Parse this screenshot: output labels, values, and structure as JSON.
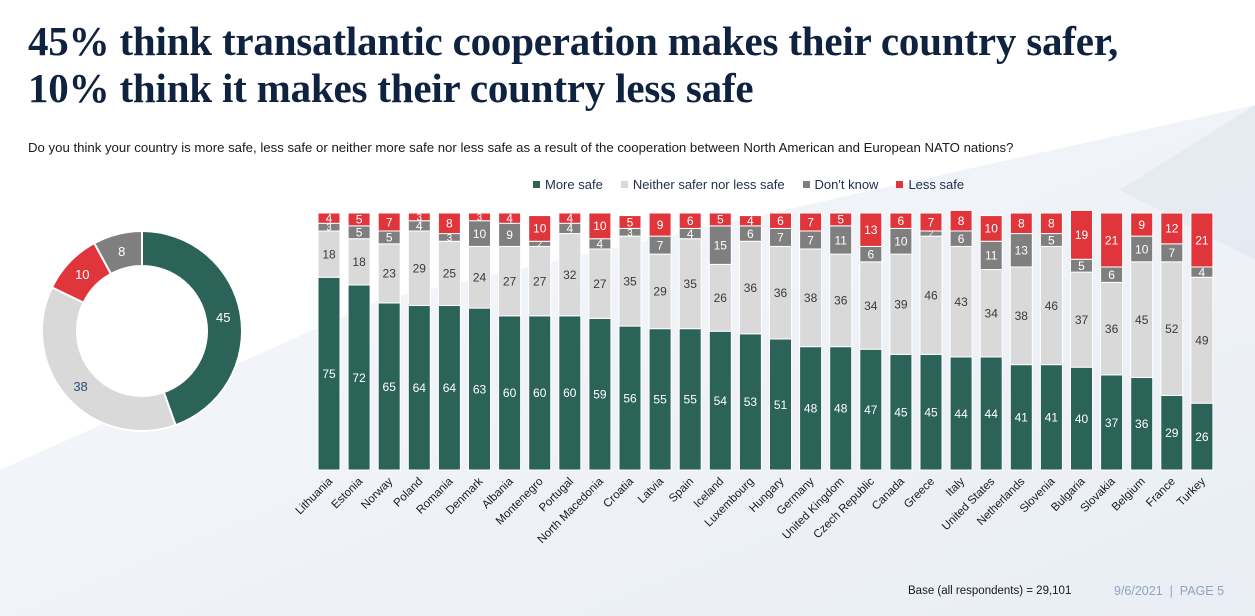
{
  "title_lines": [
    "45% think transatlantic cooperation makes their country safer,",
    "10% think it makes their country less safe"
  ],
  "subtitle": "Do you think your country is more safe, less safe or neither more safe nor less safe as a result of the cooperation between North American and European NATO nations?",
  "footer": {
    "base": "Base (all respondents) = 29,101",
    "date_page": "9/6/2021  |  PAGE 5"
  },
  "colors": {
    "more_safe": "#2b6358",
    "neither": "#d9d9d9",
    "dont_know": "#7f7f7f",
    "less_safe": "#e0353a"
  },
  "chart_data": [
    {
      "type": "pie",
      "variant": "donut",
      "title": "",
      "categories": [
        "More safe",
        "Neither safer nor less safe",
        "Less safe",
        "Don't know"
      ],
      "values": [
        45,
        38,
        10,
        8
      ]
    },
    {
      "type": "bar",
      "stacked": true,
      "orientation": "vertical",
      "title": "",
      "xlabel": "",
      "ylabel": "",
      "ylim": [
        0,
        100
      ],
      "grid": false,
      "legend_position": "top",
      "categories": [
        "Lithuania",
        "Estonia",
        "Norway",
        "Poland",
        "Romania",
        "Denmark",
        "Albania",
        "Montenegro",
        "Portugal",
        "North Macedonia",
        "Croatia",
        "Latvia",
        "Spain",
        "Iceland",
        "Luxembourg",
        "Hungary",
        "Germany",
        "United Kingdom",
        "Czech Republic",
        "Canada",
        "Greece",
        "Italy",
        "United States",
        "Netherlands",
        "Slovenia",
        "Bulgaria",
        "Slovakia",
        "Belgium",
        "France",
        "Turkey"
      ],
      "series": [
        {
          "name": "More safe",
          "key": "more_safe",
          "values": [
            75,
            72,
            65,
            64,
            64,
            63,
            60,
            60,
            60,
            59,
            56,
            55,
            55,
            54,
            53,
            51,
            48,
            48,
            47,
            45,
            45,
            44,
            44,
            41,
            41,
            40,
            37,
            36,
            29,
            26
          ]
        },
        {
          "name": "Neither safer nor less safe",
          "key": "neither",
          "values": [
            18,
            18,
            23,
            29,
            25,
            24,
            27,
            27,
            32,
            27,
            35,
            29,
            35,
            26,
            36,
            36,
            38,
            36,
            34,
            39,
            46,
            43,
            34,
            38,
            46,
            37,
            36,
            45,
            52,
            49
          ]
        },
        {
          "name": "Don't know",
          "key": "dont_know",
          "values": [
            3,
            5,
            5,
            4,
            3,
            10,
            9,
            2,
            4,
            4,
            3,
            7,
            4,
            15,
            6,
            7,
            7,
            11,
            6,
            10,
            2,
            6,
            11,
            13,
            5,
            5,
            6,
            10,
            7,
            4
          ]
        },
        {
          "name": "Less safe",
          "key": "less_safe",
          "values": [
            4,
            5,
            7,
            3,
            8,
            3,
            4,
            10,
            4,
            10,
            5,
            9,
            6,
            5,
            4,
            6,
            7,
            5,
            13,
            6,
            7,
            8,
            10,
            8,
            8,
            19,
            21,
            9,
            12,
            21
          ]
        }
      ]
    }
  ]
}
